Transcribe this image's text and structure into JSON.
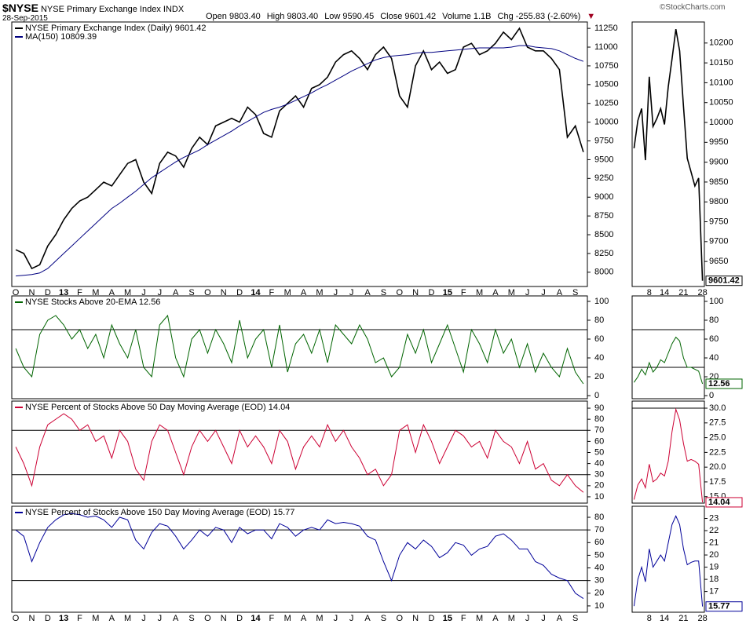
{
  "header": {
    "symbol": "$NYSE",
    "name": "NYSE Primary Exchange Index",
    "exchange": "INDX",
    "date": "28-Sep-2015",
    "quote": [
      "Open 9803.40",
      "High 9803.40",
      "Low 9590.45",
      "Close 9601.42",
      "Volume 1.1B",
      "Chg -255.83 (-2.60%)"
    ],
    "copyright": "©StockCharts.com"
  },
  "chart_data": [
    {
      "type": "line",
      "legend": "upper left",
      "categories": [
        "O",
        null,
        "N",
        null,
        "D",
        null,
        "13",
        null,
        "F",
        null,
        "M",
        null,
        "A",
        null,
        "M",
        null,
        "J",
        null,
        "J",
        null,
        "A",
        null,
        "S",
        null,
        "O",
        null,
        "N",
        null,
        "D",
        null,
        "14",
        null,
        "F",
        null,
        "M",
        null,
        "A",
        null,
        "M",
        null,
        "J",
        null,
        "J",
        null,
        "A",
        null,
        "S",
        null,
        "O",
        null,
        "N",
        null,
        "D",
        null,
        "15",
        null,
        "F",
        null,
        "M",
        null,
        "A",
        null,
        "M",
        null,
        "J",
        null,
        "J",
        null,
        "A",
        null,
        "S",
        null
      ],
      "series": [
        {
          "name": "NYSE Primary Exchange Index (Daily) 9601.42",
          "color": "#000000",
          "values": [
            8300,
            8250,
            8050,
            8100,
            8350,
            8500,
            8700,
            8850,
            8950,
            9000,
            9100,
            9200,
            9150,
            9300,
            9450,
            9500,
            9200,
            9050,
            9450,
            9600,
            9550,
            9400,
            9650,
            9800,
            9700,
            9950,
            10000,
            10050,
            10000,
            10200,
            10100,
            9850,
            9800,
            10150,
            10250,
            10350,
            10200,
            10450,
            10500,
            10600,
            10800,
            10900,
            10950,
            10850,
            10700,
            10900,
            11000,
            10850,
            10350,
            10200,
            10750,
            10950,
            10700,
            10800,
            10650,
            10700,
            11000,
            11050,
            10900,
            10950,
            11050,
            11200,
            11100,
            11250,
            11000,
            10950,
            10950,
            10850,
            10700,
            9800,
            9950,
            9601.42
          ]
        },
        {
          "name": "MA(150) 10809.39",
          "color": "#000080",
          "values": [
            7950,
            7960,
            7970,
            7990,
            8050,
            8150,
            8250,
            8350,
            8450,
            8550,
            8650,
            8750,
            8850,
            8920,
            9000,
            9080,
            9170,
            9260,
            9330,
            9400,
            9470,
            9530,
            9580,
            9630,
            9700,
            9760,
            9820,
            9880,
            9950,
            10010,
            10070,
            10130,
            10170,
            10200,
            10240,
            10290,
            10340,
            10390,
            10450,
            10500,
            10560,
            10620,
            10680,
            10730,
            10780,
            10830,
            10860,
            10880,
            10890,
            10900,
            10920,
            10930,
            10930,
            10940,
            10950,
            10960,
            10970,
            10980,
            10990,
            10990,
            10990,
            10990,
            11000,
            11020,
            11020,
            11000,
            10990,
            10980,
            10950,
            10900,
            10850,
            10809.39
          ]
        }
      ],
      "ylim": [
        7810,
        11335
      ],
      "yticks": [
        8000,
        8250,
        8500,
        8750,
        9000,
        9250,
        9500,
        9750,
        10000,
        10250,
        10500,
        10750,
        11000,
        11250
      ]
    },
    {
      "type": "line",
      "legend": "upper left",
      "series": [
        {
          "name": "NYSE Stocks Above 20-EMA 12.56",
          "color": "#006400",
          "values": [
            50,
            30,
            20,
            65,
            80,
            85,
            75,
            60,
            70,
            50,
            65,
            40,
            75,
            55,
            40,
            70,
            30,
            20,
            75,
            85,
            40,
            20,
            60,
            70,
            45,
            70,
            55,
            35,
            80,
            40,
            60,
            70,
            30,
            75,
            25,
            55,
            65,
            45,
            70,
            35,
            75,
            65,
            55,
            75,
            60,
            35,
            40,
            20,
            30,
            65,
            45,
            70,
            35,
            55,
            75,
            50,
            25,
            70,
            55,
            35,
            70,
            45,
            60,
            30,
            55,
            25,
            45,
            30,
            20,
            50,
            25,
            12.56
          ]
        }
      ],
      "ylim": [
        -3.3,
        105.8
      ],
      "yticks": [
        0,
        20,
        40,
        60,
        80,
        100
      ],
      "hlines": [
        70,
        30
      ]
    },
    {
      "type": "line",
      "legend": "upper left",
      "series": [
        {
          "name": "NYSE Percent of Stocks Above 50 Day Moving Average (EOD) 14.04",
          "color": "#cc0033",
          "values": [
            55,
            40,
            20,
            55,
            75,
            80,
            85,
            80,
            70,
            75,
            60,
            65,
            45,
            70,
            60,
            35,
            25,
            60,
            75,
            70,
            50,
            30,
            55,
            70,
            60,
            70,
            55,
            40,
            70,
            55,
            65,
            55,
            40,
            70,
            60,
            35,
            55,
            65,
            55,
            75,
            60,
            70,
            55,
            45,
            30,
            35,
            20,
            30,
            70,
            75,
            50,
            75,
            60,
            40,
            55,
            70,
            65,
            55,
            60,
            45,
            70,
            60,
            55,
            40,
            60,
            35,
            40,
            25,
            20,
            30,
            20,
            14.04
          ]
        }
      ],
      "ylim": [
        4.3,
        96.4
      ],
      "yticks": [
        10,
        20,
        30,
        40,
        50,
        60,
        70,
        80,
        90
      ],
      "hlines": [
        70,
        30
      ]
    },
    {
      "type": "line",
      "legend": "upper left",
      "categories": [
        "O",
        null,
        "N",
        null,
        "D",
        null,
        "13",
        null,
        "F",
        null,
        "M",
        null,
        "A",
        null,
        "M",
        null,
        "J",
        null,
        "J",
        null,
        "A",
        null,
        "S",
        null,
        "O",
        null,
        "N",
        null,
        "D",
        null,
        "14",
        null,
        "F",
        null,
        "M",
        null,
        "A",
        null,
        "M",
        null,
        "J",
        null,
        "J",
        null,
        "A",
        null,
        "S",
        null,
        "O",
        null,
        "N",
        null,
        "D",
        null,
        "15",
        null,
        "F",
        null,
        "M",
        null,
        "A",
        null,
        "M",
        null,
        "J",
        null,
        "J",
        null,
        "A",
        null,
        "S",
        null
      ],
      "series": [
        {
          "name": "NYSE Percent of Stocks Above 150 Day Moving Average (EOD) 15.77",
          "color": "#000099",
          "values": [
            70,
            65,
            45,
            60,
            72,
            78,
            82,
            83,
            82,
            80,
            81,
            78,
            72,
            80,
            78,
            62,
            55,
            68,
            75,
            73,
            65,
            55,
            62,
            70,
            65,
            72,
            70,
            60,
            72,
            67,
            70,
            70,
            63,
            75,
            72,
            65,
            70,
            72,
            70,
            78,
            75,
            76,
            75,
            73,
            65,
            62,
            45,
            30,
            50,
            60,
            55,
            62,
            57,
            48,
            52,
            60,
            58,
            50,
            55,
            57,
            65,
            67,
            62,
            55,
            55,
            45,
            42,
            35,
            32,
            30,
            20,
            15.77
          ]
        }
      ],
      "ylim": [
        5,
        88.7
      ],
      "yticks": [
        10,
        20,
        30,
        40,
        50,
        60,
        70,
        80
      ],
      "hlines": [
        70,
        30
      ]
    },
    {
      "type": "line",
      "last_label": true,
      "categories": [
        null,
        null,
        null,
        null,
        "8",
        null,
        null,
        null,
        "14",
        null,
        null,
        null,
        null,
        "21",
        null,
        null,
        null,
        null,
        "28"
      ],
      "series": [
        {
          "color": "#000000",
          "values": [
            9935,
            10005,
            10035,
            9905,
            10115,
            9990,
            10010,
            10035,
            9995,
            10090,
            10160,
            10235,
            10180,
            10040,
            9910,
            9875,
            9840,
            9860,
            9601.42
          ]
        }
      ],
      "ylim": [
        9587,
        10253
      ],
      "yticks": [
        9650,
        9700,
        9750,
        9800,
        9850,
        9900,
        9950,
        10000,
        10050,
        10100,
        10150,
        10200
      ]
    },
    {
      "type": "line",
      "last_label": true,
      "series": [
        {
          "color": "#006400",
          "values": [
            14,
            20,
            28,
            22,
            35,
            25,
            30,
            38,
            35,
            45,
            55,
            62,
            58,
            40,
            30,
            30,
            28,
            26,
            12.56
          ]
        }
      ],
      "ylim": [
        -3.3,
        105.8
      ],
      "yticks": [
        0,
        20,
        40,
        60,
        80,
        100
      ],
      "hlines": [
        70,
        30
      ]
    },
    {
      "type": "line",
      "last_label": true,
      "series": [
        {
          "color": "#cc0033",
          "values": [
            14.5,
            17,
            18,
            16.5,
            20.5,
            17.5,
            18,
            19,
            18.5,
            21,
            26,
            29.8,
            28,
            24,
            21,
            21.3,
            21,
            20.5,
            14.04
          ]
        }
      ],
      "ylim": [
        13.9,
        31.2
      ],
      "yticks": [
        {
          "value": 15,
          "label": "15.0"
        },
        17.5,
        {
          "value": 20,
          "label": "20.0"
        },
        22.5,
        {
          "value": 25,
          "label": "25.0"
        },
        27.5,
        {
          "value": 30,
          "label": "30.0"
        }
      ],
      "hlines": [
        30
      ]
    },
    {
      "type": "line",
      "last_label": true,
      "categories": [
        null,
        null,
        null,
        null,
        "8",
        null,
        null,
        null,
        "14",
        null,
        null,
        null,
        null,
        "21",
        null,
        null,
        null,
        null,
        "28"
      ],
      "series": [
        {
          "color": "#000099",
          "values": [
            15.8,
            18,
            19,
            17.8,
            20.5,
            19,
            19.5,
            20,
            19.5,
            21,
            22.5,
            23.2,
            22.5,
            20.5,
            19.2,
            19.4,
            19.5,
            19.5,
            15.77
          ]
        }
      ],
      "ylim": [
        15.3,
        24.0
      ],
      "yticks": [
        17,
        18,
        19,
        20,
        21,
        22,
        23
      ]
    }
  ]
}
